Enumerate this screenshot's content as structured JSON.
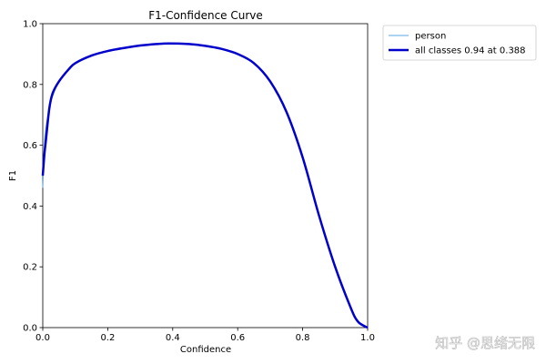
{
  "chart_data": {
    "type": "line",
    "title": "F1-Confidence Curve",
    "xlabel": "Confidence",
    "ylabel": "F1",
    "xlim": [
      0,
      1
    ],
    "ylim": [
      0,
      1
    ],
    "x_ticks": [
      "0.0",
      "0.2",
      "0.4",
      "0.6",
      "0.8",
      "1.0"
    ],
    "y_ticks": [
      "0.0",
      "0.2",
      "0.4",
      "0.6",
      "0.8",
      "1.0"
    ],
    "grid": false,
    "legend_position": "outside-top-right",
    "series": [
      {
        "name": "person",
        "color": "#5aa9e6",
        "x": [
          0.0,
          0.005,
          0.01,
          0.02,
          0.03,
          0.05,
          0.08,
          0.1,
          0.15,
          0.2,
          0.25,
          0.3,
          0.35,
          0.388,
          0.45,
          0.5,
          0.55,
          0.6,
          0.65,
          0.7,
          0.75,
          0.8,
          0.85,
          0.9,
          0.95,
          0.97,
          0.99,
          1.0
        ],
        "y": [
          0.46,
          0.6,
          0.66,
          0.72,
          0.76,
          0.81,
          0.85,
          0.87,
          0.895,
          0.91,
          0.92,
          0.928,
          0.933,
          0.935,
          0.933,
          0.927,
          0.917,
          0.9,
          0.87,
          0.81,
          0.71,
          0.56,
          0.37,
          0.2,
          0.06,
          0.02,
          0.005,
          0.0
        ]
      },
      {
        "name": "all classes 0.94 at 0.388",
        "color": "#0000cc",
        "x": [
          0.0,
          0.005,
          0.01,
          0.02,
          0.03,
          0.05,
          0.08,
          0.1,
          0.15,
          0.2,
          0.25,
          0.3,
          0.35,
          0.388,
          0.45,
          0.5,
          0.55,
          0.6,
          0.65,
          0.7,
          0.75,
          0.8,
          0.85,
          0.9,
          0.95,
          0.97,
          0.99,
          1.0
        ],
        "y": [
          0.5,
          0.57,
          0.62,
          0.72,
          0.77,
          0.81,
          0.85,
          0.87,
          0.895,
          0.91,
          0.92,
          0.928,
          0.933,
          0.935,
          0.933,
          0.927,
          0.917,
          0.9,
          0.87,
          0.81,
          0.71,
          0.56,
          0.37,
          0.2,
          0.06,
          0.02,
          0.005,
          0.0
        ]
      }
    ]
  },
  "watermark": "知乎 @思绪无限"
}
